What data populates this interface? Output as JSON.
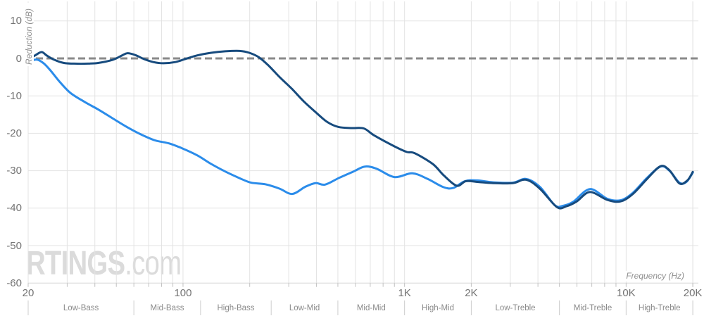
{
  "watermark": {
    "brand": "RTINGS",
    "suffix": ".com"
  },
  "colors": {
    "background": "#ffffff",
    "gridline": "#e3e3e3",
    "axis_line": "#d6d6d6",
    "minor_tick": "#c2c2c2",
    "band_separator": "#cccccc",
    "zero_dash": "#8a8a8a",
    "tick_text": "#747474",
    "band_text": "#8a8a8a",
    "axis_label_text": "#8f8f8f",
    "watermark_text": "#dbdbdb",
    "dark_blue": "#174b7e",
    "light_blue": "#2b8cea"
  },
  "chart_data": {
    "type": "line",
    "xlabel": "Frequency (Hz)",
    "ylabel": "Reduction (dB)",
    "x_scale": "log",
    "xlim": [
      20,
      20000
    ],
    "ylim": [
      -60,
      15.6
    ],
    "grid": true,
    "zero_line": {
      "value": 0,
      "style": "dashed"
    },
    "y_ticks": [
      {
        "value": 10,
        "label": "10"
      },
      {
        "value": 0,
        "label": "0"
      },
      {
        "value": -10,
        "label": "-10"
      },
      {
        "value": -20,
        "label": "-20"
      },
      {
        "value": -30,
        "label": "-30"
      },
      {
        "value": -40,
        "label": "-40"
      },
      {
        "value": -50,
        "label": "-50"
      },
      {
        "value": -60,
        "label": "-60"
      }
    ],
    "x_ticks": [
      {
        "value": 20,
        "label": "20"
      },
      {
        "value": 100,
        "label": "100"
      },
      {
        "value": 1000,
        "label": "1K"
      },
      {
        "value": 2000,
        "label": "2K"
      },
      {
        "value": 10000,
        "label": "10K"
      },
      {
        "value": 20000,
        "label": "20K"
      }
    ],
    "bands": [
      {
        "label": "Low-Bass",
        "from": 20,
        "to": 60
      },
      {
        "label": "Mid-Bass",
        "from": 60,
        "to": 120
      },
      {
        "label": "High-Bass",
        "from": 120,
        "to": 250
      },
      {
        "label": "Low-Mid",
        "from": 250,
        "to": 500
      },
      {
        "label": "Mid-Mid",
        "from": 500,
        "to": 1000
      },
      {
        "label": "High-Mid",
        "from": 1000,
        "to": 2000
      },
      {
        "label": "Low-Treble",
        "from": 2000,
        "to": 5000
      },
      {
        "label": "Mid-Treble",
        "from": 5000,
        "to": 10000
      },
      {
        "label": "High-Treble",
        "from": 10000,
        "to": 20000
      }
    ],
    "series": [
      {
        "name": "light_blue",
        "color": "#2b8cea",
        "points": [
          [
            20,
            -1.0
          ],
          [
            21.8,
            -0.3
          ],
          [
            23.5,
            -1.3
          ],
          [
            25.3,
            -3.3
          ],
          [
            27.8,
            -6.3
          ],
          [
            31,
            -9.2
          ],
          [
            35.9,
            -11.6
          ],
          [
            41.6,
            -13.7
          ],
          [
            48.1,
            -16.0
          ],
          [
            55.8,
            -18.3
          ],
          [
            64.6,
            -20.3
          ],
          [
            74.8,
            -21.9
          ],
          [
            86.6,
            -22.7
          ],
          [
            99,
            -24.0
          ],
          [
            116,
            -25.9
          ],
          [
            134,
            -28.2
          ],
          [
            155,
            -30.2
          ],
          [
            180,
            -32.0
          ],
          [
            203,
            -33.2
          ],
          [
            235,
            -33.6
          ],
          [
            273,
            -34.8
          ],
          [
            311,
            -36.2
          ],
          [
            356,
            -34.3
          ],
          [
            396,
            -33.3
          ],
          [
            438,
            -33.7
          ],
          [
            507,
            -31.9
          ],
          [
            588,
            -30.2
          ],
          [
            662,
            -28.9
          ],
          [
            750,
            -29.5
          ],
          [
            900,
            -31.7
          ],
          [
            1083,
            -30.7
          ],
          [
            1272,
            -32.2
          ],
          [
            1500,
            -34.4
          ],
          [
            1660,
            -34.6
          ],
          [
            1870,
            -32.8
          ],
          [
            2130,
            -32.6
          ],
          [
            2510,
            -33.1
          ],
          [
            3080,
            -33.2
          ],
          [
            3540,
            -32.2
          ],
          [
            4080,
            -34.3
          ],
          [
            4760,
            -39.2
          ],
          [
            5170,
            -39.4
          ],
          [
            5770,
            -38.3
          ],
          [
            6860,
            -34.9
          ],
          [
            8230,
            -37.5
          ],
          [
            9440,
            -37.9
          ],
          [
            10730,
            -35.9
          ],
          [
            12430,
            -31.9
          ],
          [
            14300,
            -28.9
          ],
          [
            15700,
            -30.0
          ],
          [
            17400,
            -33.2
          ],
          [
            18700,
            -33.0
          ],
          [
            20000,
            -30.5
          ]
        ]
      },
      {
        "name": "dark_blue",
        "color": "#174b7e",
        "points": [
          [
            20,
            -0.3
          ],
          [
            21.5,
            0.8
          ],
          [
            23,
            1.7
          ],
          [
            24.2,
            0.8
          ],
          [
            25.9,
            -0.2
          ],
          [
            28.9,
            -1.2
          ],
          [
            32.2,
            -1.4
          ],
          [
            37.3,
            -1.4
          ],
          [
            41.6,
            -1.2
          ],
          [
            48.1,
            -0.4
          ],
          [
            52.7,
            0.7
          ],
          [
            56.2,
            1.4
          ],
          [
            60.8,
            0.9
          ],
          [
            66.9,
            -0.2
          ],
          [
            73.7,
            -1.0
          ],
          [
            81.5,
            -1.3
          ],
          [
            91.8,
            -1.0
          ],
          [
            101.9,
            -0.2
          ],
          [
            116,
            0.8
          ],
          [
            134,
            1.5
          ],
          [
            155,
            1.9
          ],
          [
            180,
            2.0
          ],
          [
            199,
            1.5
          ],
          [
            220,
            0.3
          ],
          [
            244,
            -2.0
          ],
          [
            273,
            -5.0
          ],
          [
            311,
            -8.2
          ],
          [
            351,
            -11.5
          ],
          [
            401,
            -14.6
          ],
          [
            448,
            -17.0
          ],
          [
            503,
            -18.3
          ],
          [
            580,
            -18.6
          ],
          [
            655,
            -18.7
          ],
          [
            731,
            -20.6
          ],
          [
            900,
            -23.5
          ],
          [
            1025,
            -25.0
          ],
          [
            1110,
            -25.3
          ],
          [
            1340,
            -28.2
          ],
          [
            1500,
            -31.2
          ],
          [
            1720,
            -34.0
          ],
          [
            1890,
            -32.8
          ],
          [
            2150,
            -33.0
          ],
          [
            2510,
            -33.3
          ],
          [
            3080,
            -33.3
          ],
          [
            3540,
            -32.4
          ],
          [
            4080,
            -34.8
          ],
          [
            4870,
            -39.7
          ],
          [
            5380,
            -39.5
          ],
          [
            5990,
            -38.2
          ],
          [
            6860,
            -35.7
          ],
          [
            8230,
            -37.8
          ],
          [
            9440,
            -38.2
          ],
          [
            10730,
            -36.2
          ],
          [
            12430,
            -32.2
          ],
          [
            14300,
            -28.8
          ],
          [
            15700,
            -29.9
          ],
          [
            17400,
            -33.4
          ],
          [
            18900,
            -32.6
          ],
          [
            20000,
            -30.3
          ]
        ]
      }
    ]
  }
}
